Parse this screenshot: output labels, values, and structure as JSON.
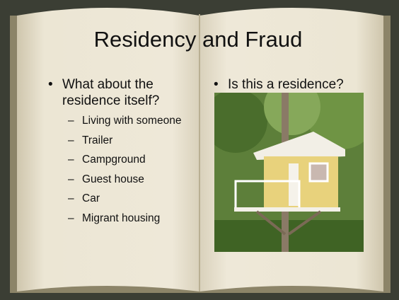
{
  "header": {
    "title": "Residency and Fraud"
  },
  "left": {
    "bullet": "What about the residence itself?",
    "sub_bullets": [
      "Living with someone",
      "Trailer",
      "Campground",
      "Guest house",
      "Car",
      "Migrant housing"
    ]
  },
  "right": {
    "bullet": "Is this a residence?"
  }
}
